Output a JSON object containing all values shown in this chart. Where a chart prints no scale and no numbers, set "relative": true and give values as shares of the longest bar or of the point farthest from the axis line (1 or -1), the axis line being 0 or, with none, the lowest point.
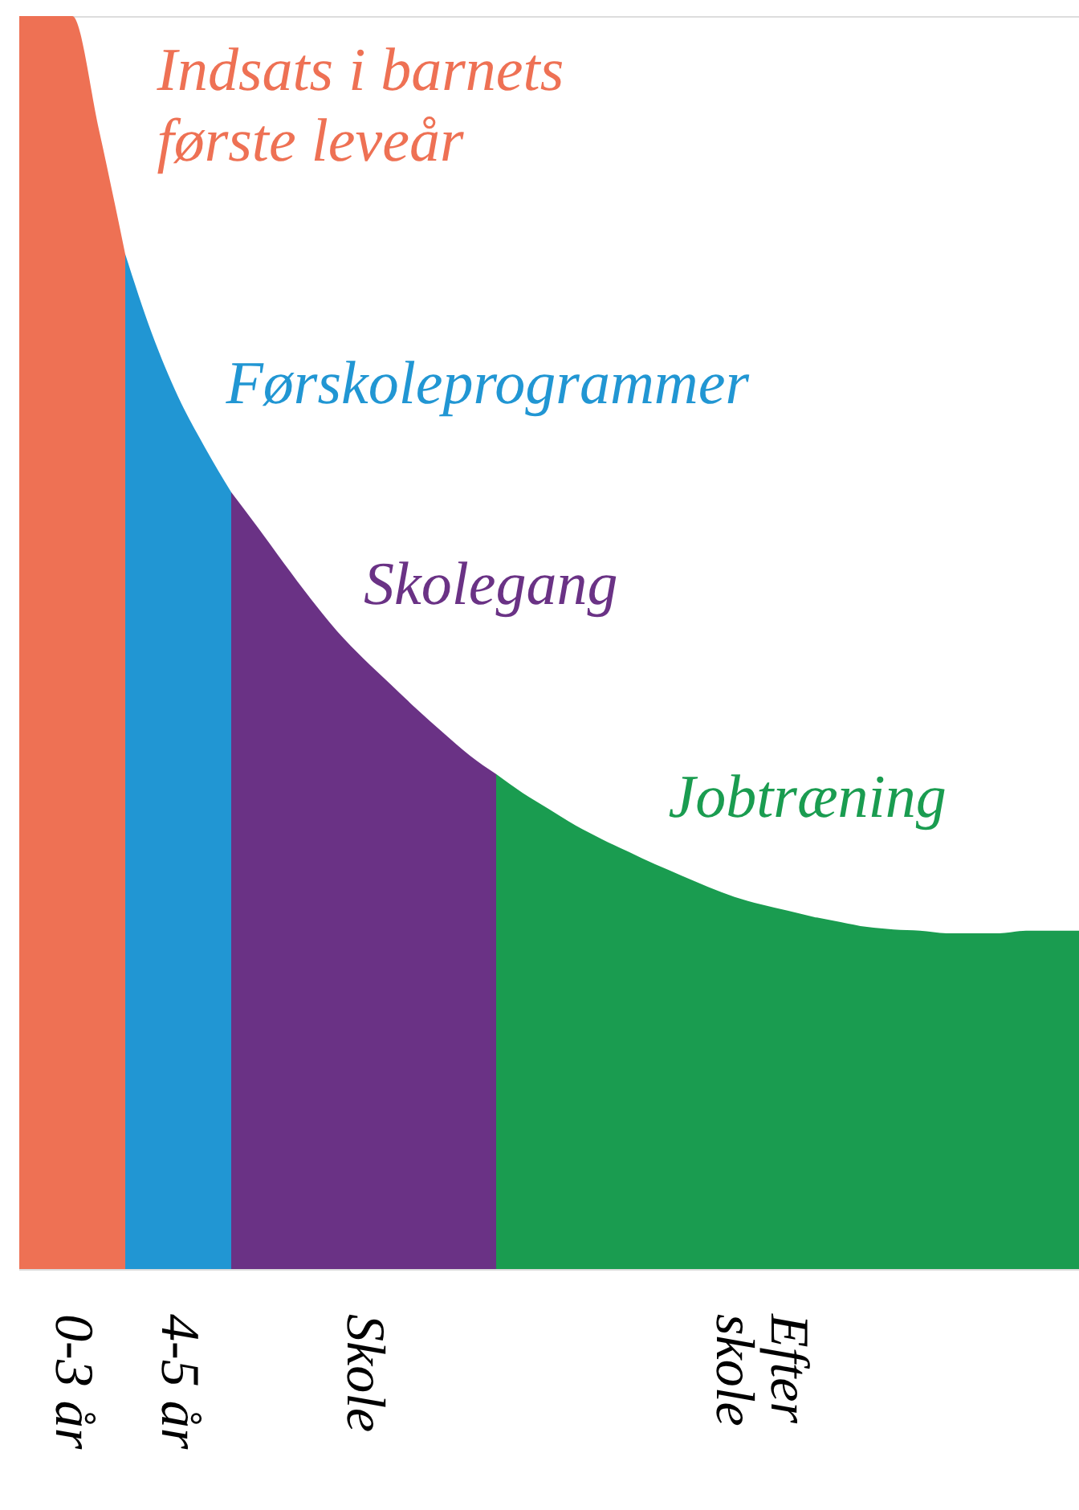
{
  "chart_data": {
    "type": "area",
    "relative": true,
    "categories": [
      null,
      null,
      null,
      null,
      null,
      null,
      null,
      null,
      null,
      null,
      null,
      null,
      null,
      null,
      null,
      null,
      null,
      null,
      null,
      null,
      null,
      null,
      null,
      null,
      null,
      null,
      null,
      null,
      null,
      null,
      null,
      null,
      null,
      null,
      null,
      null,
      null,
      null,
      null,
      null,
      null
    ],
    "series": [
      {
        "name": "Indsats i barnets første leveår",
        "color": "#ee7154",
        "values": [
          1,
          1,
          1,
          0.91,
          0.81,
          null,
          null,
          null,
          null,
          null,
          null,
          null,
          null,
          null,
          null,
          null,
          null,
          null,
          null,
          null,
          null,
          null,
          null,
          null,
          null,
          null,
          null,
          null,
          null,
          null,
          null,
          null,
          null,
          null,
          null,
          null,
          null,
          null,
          null,
          null,
          null
        ]
      },
      {
        "name": "Førskoleprogrammer",
        "color": "#2196d3",
        "values": [
          null,
          null,
          null,
          null,
          0.81,
          0.747,
          0.696,
          0.656,
          0.62,
          null,
          null,
          null,
          null,
          null,
          null,
          null,
          null,
          null,
          null,
          null,
          null,
          null,
          null,
          null,
          null,
          null,
          null,
          null,
          null,
          null,
          null,
          null,
          null,
          null,
          null,
          null,
          null,
          null,
          null,
          null,
          null
        ]
      },
      {
        "name": "Skolegang",
        "color": "#6a3285",
        "values": [
          null,
          null,
          null,
          null,
          null,
          null,
          null,
          null,
          0.62,
          0.592,
          0.563,
          0.535,
          0.509,
          0.487,
          0.467,
          0.447,
          0.428,
          0.41,
          0.395,
          null,
          null,
          null,
          null,
          null,
          null,
          null,
          null,
          null,
          null,
          null,
          null,
          null,
          null,
          null,
          null,
          null,
          null,
          null,
          null,
          null,
          null
        ]
      },
      {
        "name": "Jobtræning",
        "color": "#1a9c50",
        "values": [
          null,
          null,
          null,
          null,
          null,
          null,
          null,
          null,
          null,
          null,
          null,
          null,
          null,
          null,
          null,
          null,
          null,
          null,
          0.395,
          0.38,
          0.367,
          0.354,
          0.343,
          0.333,
          0.323,
          0.314,
          0.305,
          0.297,
          0.291,
          0.286,
          0.281,
          0.277,
          0.273,
          0.271,
          0.27,
          0.268,
          0.268,
          0.268,
          0.27,
          0.27,
          0.27
        ]
      }
    ],
    "annotations": [
      "0-3 år",
      "4-5 år",
      "Skole",
      "Efter skole"
    ]
  }
}
